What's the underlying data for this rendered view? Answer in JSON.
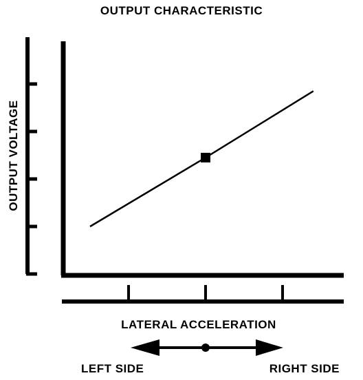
{
  "chart_data": {
    "type": "line",
    "title": "OUTPUT CHARACTERISTIC",
    "xlabel": "LATERAL ACCELERATION",
    "ylabel": "OUTPUT VOLTAGE",
    "direction_left_label": "LEFT SIDE",
    "direction_right_label": "RIGHT SIDE",
    "xlim": [
      -2.6,
      2.6
    ],
    "ylim": [
      0,
      4
    ],
    "x_ticks": [
      -1,
      0,
      1
    ],
    "y_ticks": [
      0,
      1,
      2,
      3,
      4
    ],
    "grid": false,
    "series": [
      {
        "x": [
          -1.5,
          0,
          1.4
        ],
        "y": [
          1,
          2.45,
          3.85
        ]
      }
    ],
    "marker_points": [
      {
        "x": 0,
        "y": 2.45
      }
    ],
    "line_color": "#000000"
  }
}
